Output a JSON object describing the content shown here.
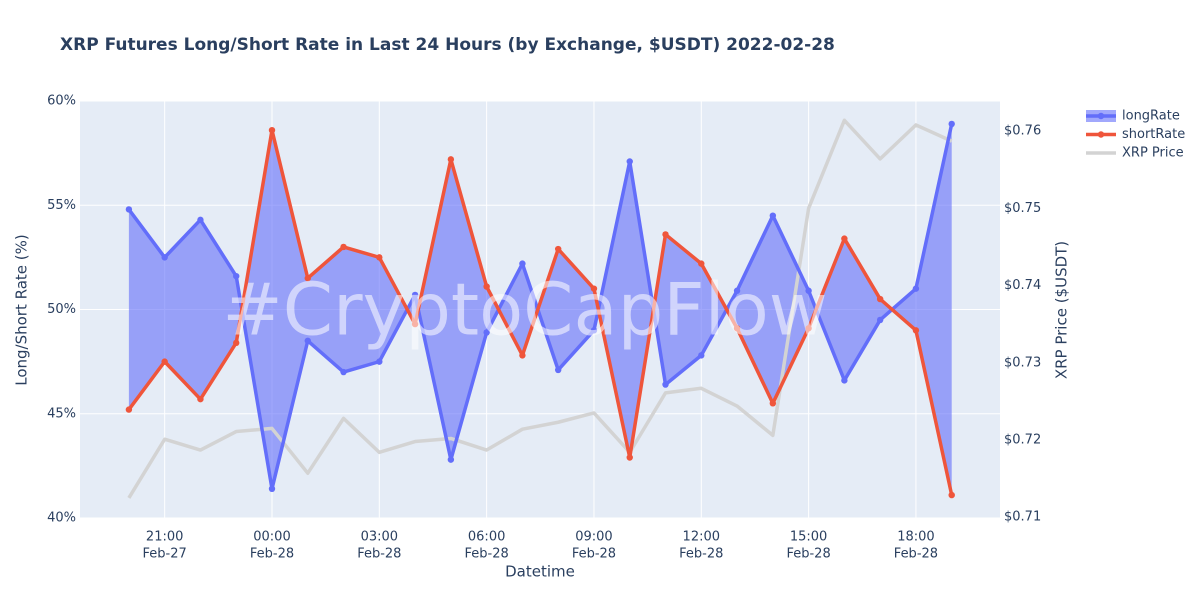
{
  "chart_data": {
    "type": "line",
    "title": "XRP Futures Long/Short Rate in Last 24 Hours (by Exchange, $USDT) 2022-02-28",
    "x_label": "Datetime",
    "y_label": "Long/Short Rate (%)",
    "y2_label": "XRP Price ($USDT)",
    "watermark": "#CryptoCapFlow",
    "x": [
      "Feb-27 20:00",
      "Feb-27 21:00",
      "Feb-27 22:00",
      "Feb-27 23:00",
      "Feb-28 00:00",
      "Feb-28 01:00",
      "Feb-28 02:00",
      "Feb-28 03:00",
      "Feb-28 04:00",
      "Feb-28 05:00",
      "Feb-28 06:00",
      "Feb-28 07:00",
      "Feb-28 08:00",
      "Feb-28 09:00",
      "Feb-28 10:00",
      "Feb-28 11:00",
      "Feb-28 12:00",
      "Feb-28 13:00",
      "Feb-28 14:00",
      "Feb-28 15:00",
      "Feb-28 16:00",
      "Feb-28 17:00",
      "Feb-28 18:00",
      "Feb-28 19:00"
    ],
    "series": [
      {
        "name": "longRate",
        "color": "#636efa",
        "fill_color": "rgba(99,110,250,0.6)",
        "values": [
          54.8,
          52.5,
          54.3,
          51.6,
          41.4,
          48.5,
          47.0,
          47.5,
          50.7,
          42.8,
          48.9,
          52.2,
          47.1,
          49.0,
          57.1,
          46.4,
          47.8,
          50.9,
          54.5,
          50.9,
          46.6,
          49.5,
          51.0,
          58.9
        ]
      },
      {
        "name": "shortRate",
        "color": "#ef553b",
        "values": [
          45.2,
          47.5,
          45.7,
          48.4,
          58.6,
          51.5,
          53.0,
          52.5,
          49.3,
          57.2,
          51.1,
          47.8,
          52.9,
          51.0,
          42.9,
          53.6,
          52.2,
          49.1,
          45.5,
          49.1,
          53.4,
          50.5,
          49.0,
          41.1
        ]
      },
      {
        "name": "XRP Price",
        "color": "#d3d3d3",
        "axis": "y2",
        "values": [
          0.7125,
          0.7201,
          0.7187,
          0.7211,
          0.7215,
          0.7157,
          0.7228,
          0.7184,
          0.7198,
          0.7202,
          0.7187,
          0.7214,
          0.7223,
          0.7235,
          0.7184,
          0.7261,
          0.7267,
          0.7244,
          0.7206,
          0.75,
          0.7614,
          0.7564,
          0.7608,
          0.7587
        ]
      }
    ],
    "xlim": [
      "Feb-27 18:38",
      "Feb-28 20:21"
    ],
    "xticks": [
      {
        "value": "Feb-27 21:00",
        "label": [
          "21:00",
          "Feb-27"
        ]
      },
      {
        "value": "Feb-28 00:00",
        "label": [
          "00:00",
          "Feb-28"
        ]
      },
      {
        "value": "Feb-28 03:00",
        "label": [
          "03:00",
          "Feb-28"
        ]
      },
      {
        "value": "Feb-28 06:00",
        "label": [
          "06:00",
          "Feb-28"
        ]
      },
      {
        "value": "Feb-28 09:00",
        "label": [
          "09:00",
          "Feb-28"
        ]
      },
      {
        "value": "Feb-28 12:00",
        "label": [
          "12:00",
          "Feb-28"
        ]
      },
      {
        "value": "Feb-28 15:00",
        "label": [
          "15:00",
          "Feb-28"
        ]
      },
      {
        "value": "Feb-28 18:00",
        "label": [
          "18:00",
          "Feb-28"
        ]
      }
    ],
    "ylim": [
      40,
      60
    ],
    "yticks": [
      {
        "value": 40,
        "label": "40%"
      },
      {
        "value": 45,
        "label": "45%"
      },
      {
        "value": 50,
        "label": "50%"
      },
      {
        "value": 55,
        "label": "55%"
      },
      {
        "value": 60,
        "label": "60%"
      }
    ],
    "y2lim": [
      0.7099,
      0.7639
    ],
    "y2ticks": [
      {
        "value": 0.71,
        "label": "$0.71"
      },
      {
        "value": 0.72,
        "label": "$0.72"
      },
      {
        "value": 0.73,
        "label": "$0.73"
      },
      {
        "value": 0.74,
        "label": "$0.74"
      },
      {
        "value": 0.75,
        "label": "$0.75"
      },
      {
        "value": 0.76,
        "label": "$0.76"
      }
    ],
    "grid": true
  }
}
